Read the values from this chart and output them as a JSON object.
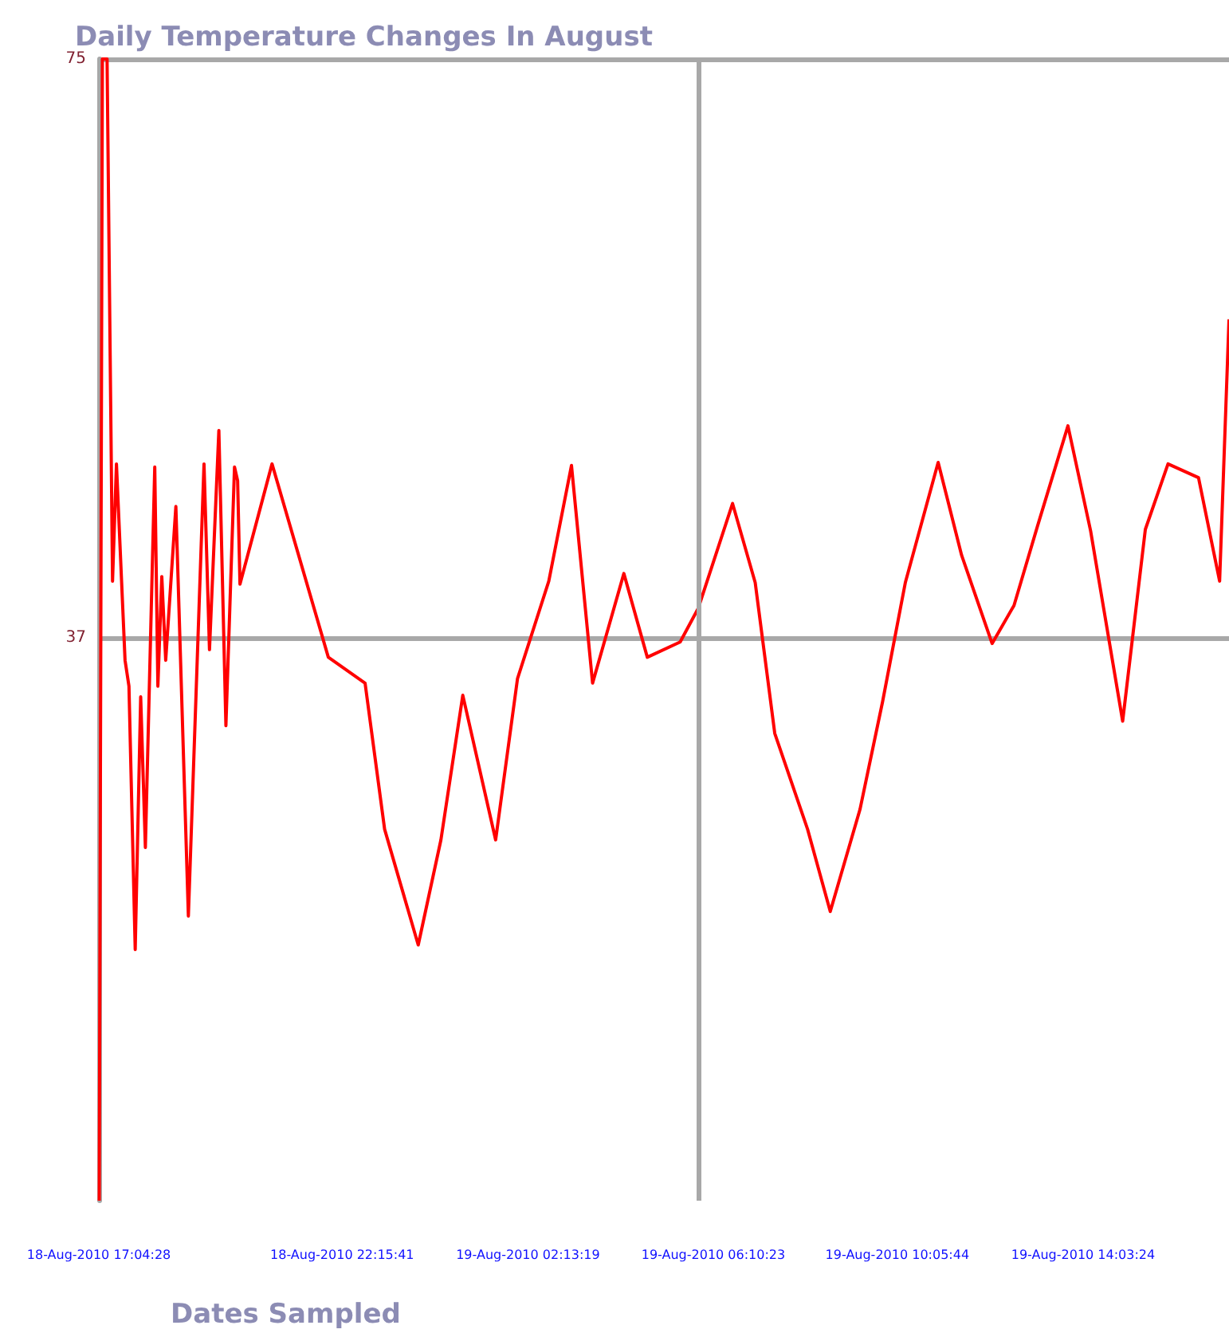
{
  "chart_data": {
    "type": "line",
    "title": "Daily Temperature Changes In August",
    "xlabel": "Dates Sampled",
    "xlim": [
      "2010-08-18T17:04:28",
      "2010-08-19T17:10"
    ],
    "xticks": [
      {
        "value": "2010-08-18T17:04:28",
        "label": "18-Aug-2010 17:04:28"
      },
      {
        "value": "2010-08-18T22:15:41",
        "label": "18-Aug-2010 22:15:41"
      },
      {
        "value": "2010-08-19T02:13:19",
        "label": "19-Aug-2010 02:13:19"
      },
      {
        "value": "2010-08-19T06:10:23",
        "label": "19-Aug-2010 06:10:23"
      },
      {
        "value": "2010-08-19T10:05:44",
        "label": "19-Aug-2010 10:05:44"
      },
      {
        "value": "2010-08-19T14:03:24",
        "label": "19-Aug-2010 14:03:24"
      }
    ],
    "ylim": [
      0,
      75
    ],
    "yticks": [
      37,
      75
    ],
    "grid": "y",
    "marker": "none",
    "line_style": "solid",
    "ref_lines": [
      {
        "axis": "x",
        "value": "2010-08-19T05:51"
      }
    ],
    "series": [
      {
        "color": "#ff0000",
        "x": [
          "2010-08-18T17:05",
          "2010-08-18T17:09",
          "2010-08-18T17:15",
          "2010-08-18T17:22",
          "2010-08-18T17:27",
          "2010-08-18T17:38",
          "2010-08-18T17:43",
          "2010-08-18T17:51",
          "2010-08-18T17:58",
          "2010-08-18T18:04",
          "2010-08-18T18:16",
          "2010-08-18T18:20",
          "2010-08-18T18:25",
          "2010-08-18T18:30",
          "2010-08-18T18:43",
          "2010-08-18T18:59",
          "2010-08-18T19:19",
          "2010-08-18T19:26",
          "2010-08-18T19:38",
          "2010-08-18T19:47",
          "2010-08-18T19:58",
          "2010-08-18T20:02",
          "2010-08-18T20:05",
          "2010-08-18T20:46",
          "2010-08-18T21:58",
          "2010-08-18T22:45",
          "2010-08-18T23:10",
          "2010-08-18T23:53",
          "2010-08-19T00:22",
          "2010-08-19T00:50",
          "2010-08-19T01:32",
          "2010-08-19T02:00",
          "2010-08-19T02:40",
          "2010-08-19T03:09",
          "2010-08-19T03:36",
          "2010-08-19T04:16",
          "2010-08-19T04:46",
          "2010-08-19T05:28",
          "2010-08-19T05:51",
          "2010-08-19T06:35",
          "2010-08-19T07:04",
          "2010-08-19T07:29",
          "2010-08-19T08:11",
          "2010-08-19T08:40",
          "2010-08-19T09:18",
          "2010-08-19T09:47",
          "2010-08-19T10:16",
          "2010-08-19T10:58",
          "2010-08-19T11:28",
          "2010-08-19T12:07",
          "2010-08-19T12:35",
          "2010-08-19T13:05",
          "2010-08-19T13:44",
          "2010-08-19T14:13",
          "2010-08-19T14:54",
          "2010-08-19T15:23",
          "2010-08-19T15:52",
          "2010-08-19T16:31",
          "2010-08-19T16:58",
          "2010-08-19T17:10"
        ],
        "values": [
          0,
          75,
          75,
          40.7,
          48.4,
          35.5,
          33.8,
          16.5,
          33.1,
          23.2,
          48.2,
          33.8,
          41,
          35.5,
          45.6,
          18.7,
          48.4,
          36.2,
          50.6,
          31.2,
          48.2,
          47.3,
          40.5,
          48.4,
          35.7,
          34,
          24.4,
          16.8,
          23.7,
          33.2,
          23.7,
          34.3,
          40.7,
          48.3,
          34,
          41.2,
          35.7,
          36.7,
          38.9,
          45.8,
          40.6,
          30.7,
          24.4,
          19,
          25.7,
          32.8,
          40.6,
          48.5,
          42.4,
          36.6,
          39.1,
          44.3,
          50.9,
          44,
          31.5,
          44.1,
          48.4,
          47.5,
          40.7,
          57.9
        ]
      }
    ]
  }
}
